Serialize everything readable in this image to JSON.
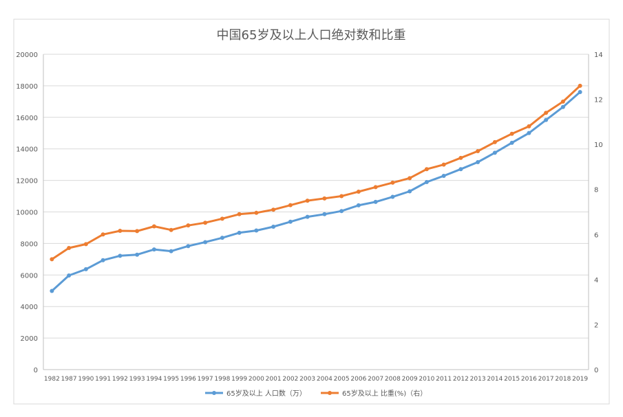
{
  "chart_data": {
    "type": "line",
    "title": "中国65岁及以上人口绝对数和比重",
    "categories": [
      "1982",
      "1987",
      "1990",
      "1991",
      "1992",
      "1993",
      "1994",
      "1995",
      "1996",
      "1997",
      "1998",
      "1999",
      "2000",
      "2001",
      "2002",
      "2003",
      "2004",
      "2005",
      "2006",
      "2007",
      "2008",
      "2009",
      "2010",
      "2011",
      "2012",
      "2013",
      "2014",
      "2015",
      "2016",
      "2017",
      "2018",
      "2019"
    ],
    "series": [
      {
        "name": "65岁及以上 人口数（万）",
        "axis": "left",
        "color": "#5b9bd5",
        "values": [
          4991,
          5968,
          6368,
          6938,
          7218,
          7289,
          7622,
          7510,
          7833,
          8085,
          8359,
          8679,
          8821,
          9062,
          9377,
          9692,
          9857,
          10055,
          10419,
          10636,
          10956,
          11307,
          11894,
          12288,
          12714,
          13161,
          13755,
          14386,
          15003,
          15831,
          16658,
          17603
        ]
      },
      {
        "name": "65岁及以上 比重(%)（右）",
        "axis": "right",
        "color": "#ed7d31",
        "values": [
          4.9,
          5.4,
          5.57,
          6.0,
          6.16,
          6.15,
          6.36,
          6.2,
          6.4,
          6.52,
          6.7,
          6.9,
          6.96,
          7.1,
          7.3,
          7.5,
          7.6,
          7.7,
          7.9,
          8.1,
          8.3,
          8.5,
          8.9,
          9.1,
          9.4,
          9.7,
          10.1,
          10.47,
          10.8,
          11.4,
          11.9,
          12.6
        ]
      }
    ],
    "y_left": {
      "min": 0,
      "max": 20000,
      "step": 2000,
      "ticks": [
        "0",
        "2000",
        "4000",
        "6000",
        "8000",
        "10000",
        "12000",
        "14000",
        "16000",
        "18000",
        "20000"
      ]
    },
    "y_right": {
      "min": 0,
      "max": 14,
      "step": 2,
      "ticks": [
        "0",
        "2",
        "4",
        "6",
        "8",
        "10",
        "12",
        "14"
      ]
    },
    "grid": true,
    "legend_position": "bottom"
  }
}
